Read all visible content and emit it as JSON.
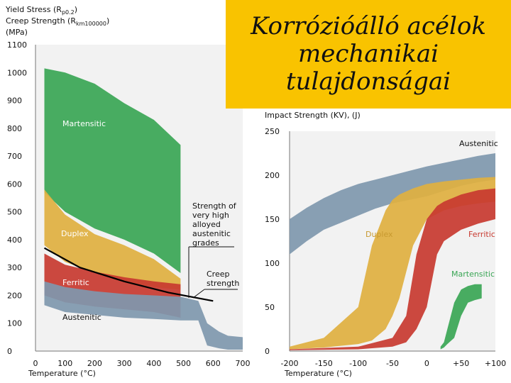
{
  "title": "Korrózióálló acélok mechanikai tulajdonságai",
  "colors": {
    "martensitic": "#3aa655",
    "duplex": "#e0b040",
    "ferritic": "#c83a30",
    "austenitic": "#7f98ae",
    "title_bg": "#f9c300"
  },
  "chart_data": [
    {
      "type": "area",
      "ylabel_lines": [
        "Yield Stress (R",
        "p0.2",
        ")",
        "Creep Strength (R",
        "km100000",
        ")",
        "(MPa)"
      ],
      "xlabel": "Temperature (°C)",
      "xlim": [
        0,
        700
      ],
      "ylim": [
        0,
        1100
      ],
      "x_ticks": [
        "0",
        "100",
        "200",
        "300",
        "400",
        "500",
        "600",
        "700"
      ],
      "y_ticks": [
        "0",
        "100",
        "200",
        "300",
        "400",
        "500",
        "600",
        "700",
        "800",
        "900",
        "1000",
        "1100"
      ],
      "series": [
        {
          "name": "Martensitic",
          "x": [
            30,
            100,
            200,
            300,
            400,
            490
          ],
          "upper": [
            1015,
            1000,
            960,
            890,
            830,
            740
          ],
          "lower": [
            570,
            500,
            440,
            400,
            350,
            280
          ]
        },
        {
          "name": "Duplex",
          "x": [
            30,
            100,
            200,
            300,
            400,
            490
          ],
          "upper": [
            580,
            490,
            420,
            380,
            330,
            260
          ],
          "lower": [
            380,
            320,
            280,
            250,
            230,
            220
          ]
        },
        {
          "name": "Ferritic",
          "x": [
            30,
            100,
            200,
            300,
            400,
            490
          ],
          "upper": [
            350,
            310,
            285,
            265,
            250,
            240
          ],
          "lower": [
            200,
            175,
            160,
            150,
            140,
            120
          ]
        },
        {
          "name": "Austenitic",
          "x": [
            30,
            100,
            200,
            300,
            400,
            490,
            550,
            580,
            620,
            650,
            700
          ],
          "upper": [
            250,
            230,
            215,
            205,
            200,
            195,
            180,
            100,
            70,
            55,
            50
          ],
          "lower": [
            165,
            140,
            130,
            120,
            115,
            110,
            110,
            20,
            10,
            5,
            5
          ]
        }
      ],
      "creep_line": {
        "x": [
          30,
          150,
          300,
          450,
          600
        ],
        "y": [
          370,
          300,
          250,
          210,
          180
        ]
      },
      "annotations": [
        "Strength of very high alloyed austenitic grades",
        "Creep strength"
      ]
    },
    {
      "type": "area",
      "ylabel": "Impact Strength (KV), (J)",
      "xlabel": "Temperature (°C)",
      "xlim": [
        -200,
        100
      ],
      "ylim": [
        0,
        250
      ],
      "x_ticks": [
        "-200",
        "-150",
        "-100",
        "-50",
        "0",
        "+50",
        "+100"
      ],
      "y_ticks": [
        "0",
        "50",
        "100",
        "150",
        "200",
        "250"
      ],
      "series": [
        {
          "name": "Austenitic",
          "x": [
            -200,
            -175,
            -150,
            -125,
            -100,
            -75,
            -50,
            -25,
            0,
            25,
            50,
            75,
            100
          ],
          "upper": [
            150,
            163,
            174,
            183,
            190,
            195,
            200,
            205,
            210,
            214,
            218,
            222,
            225
          ],
          "lower": [
            110,
            125,
            138,
            146,
            154,
            162,
            168,
            172,
            176,
            182,
            188,
            192,
            195
          ]
        },
        {
          "name": "Duplex",
          "x": [
            -200,
            -150,
            -100,
            -80,
            -60,
            -50,
            -40,
            -20,
            0,
            25,
            50,
            75,
            100
          ],
          "upper": [
            5,
            15,
            50,
            120,
            160,
            172,
            178,
            185,
            190,
            193,
            195,
            197,
            198
          ],
          "lower": [
            2,
            4,
            8,
            12,
            25,
            40,
            60,
            120,
            150,
            160,
            165,
            168,
            170
          ]
        },
        {
          "name": "Ferritic",
          "x": [
            -200,
            -100,
            -50,
            -30,
            -15,
            0,
            15,
            25,
            50,
            75,
            100
          ],
          "upper": [
            2,
            5,
            15,
            40,
            110,
            150,
            165,
            170,
            178,
            183,
            185
          ],
          "lower": [
            1,
            2,
            5,
            10,
            25,
            50,
            110,
            125,
            138,
            145,
            150
          ]
        },
        {
          "name": "Martensitic",
          "x": [
            20,
            25,
            30,
            40,
            50,
            60,
            70,
            80
          ],
          "upper": [
            5,
            10,
            25,
            55,
            70,
            74,
            76,
            76
          ],
          "lower": [
            2,
            4,
            8,
            15,
            40,
            55,
            58,
            60
          ]
        }
      ]
    }
  ]
}
